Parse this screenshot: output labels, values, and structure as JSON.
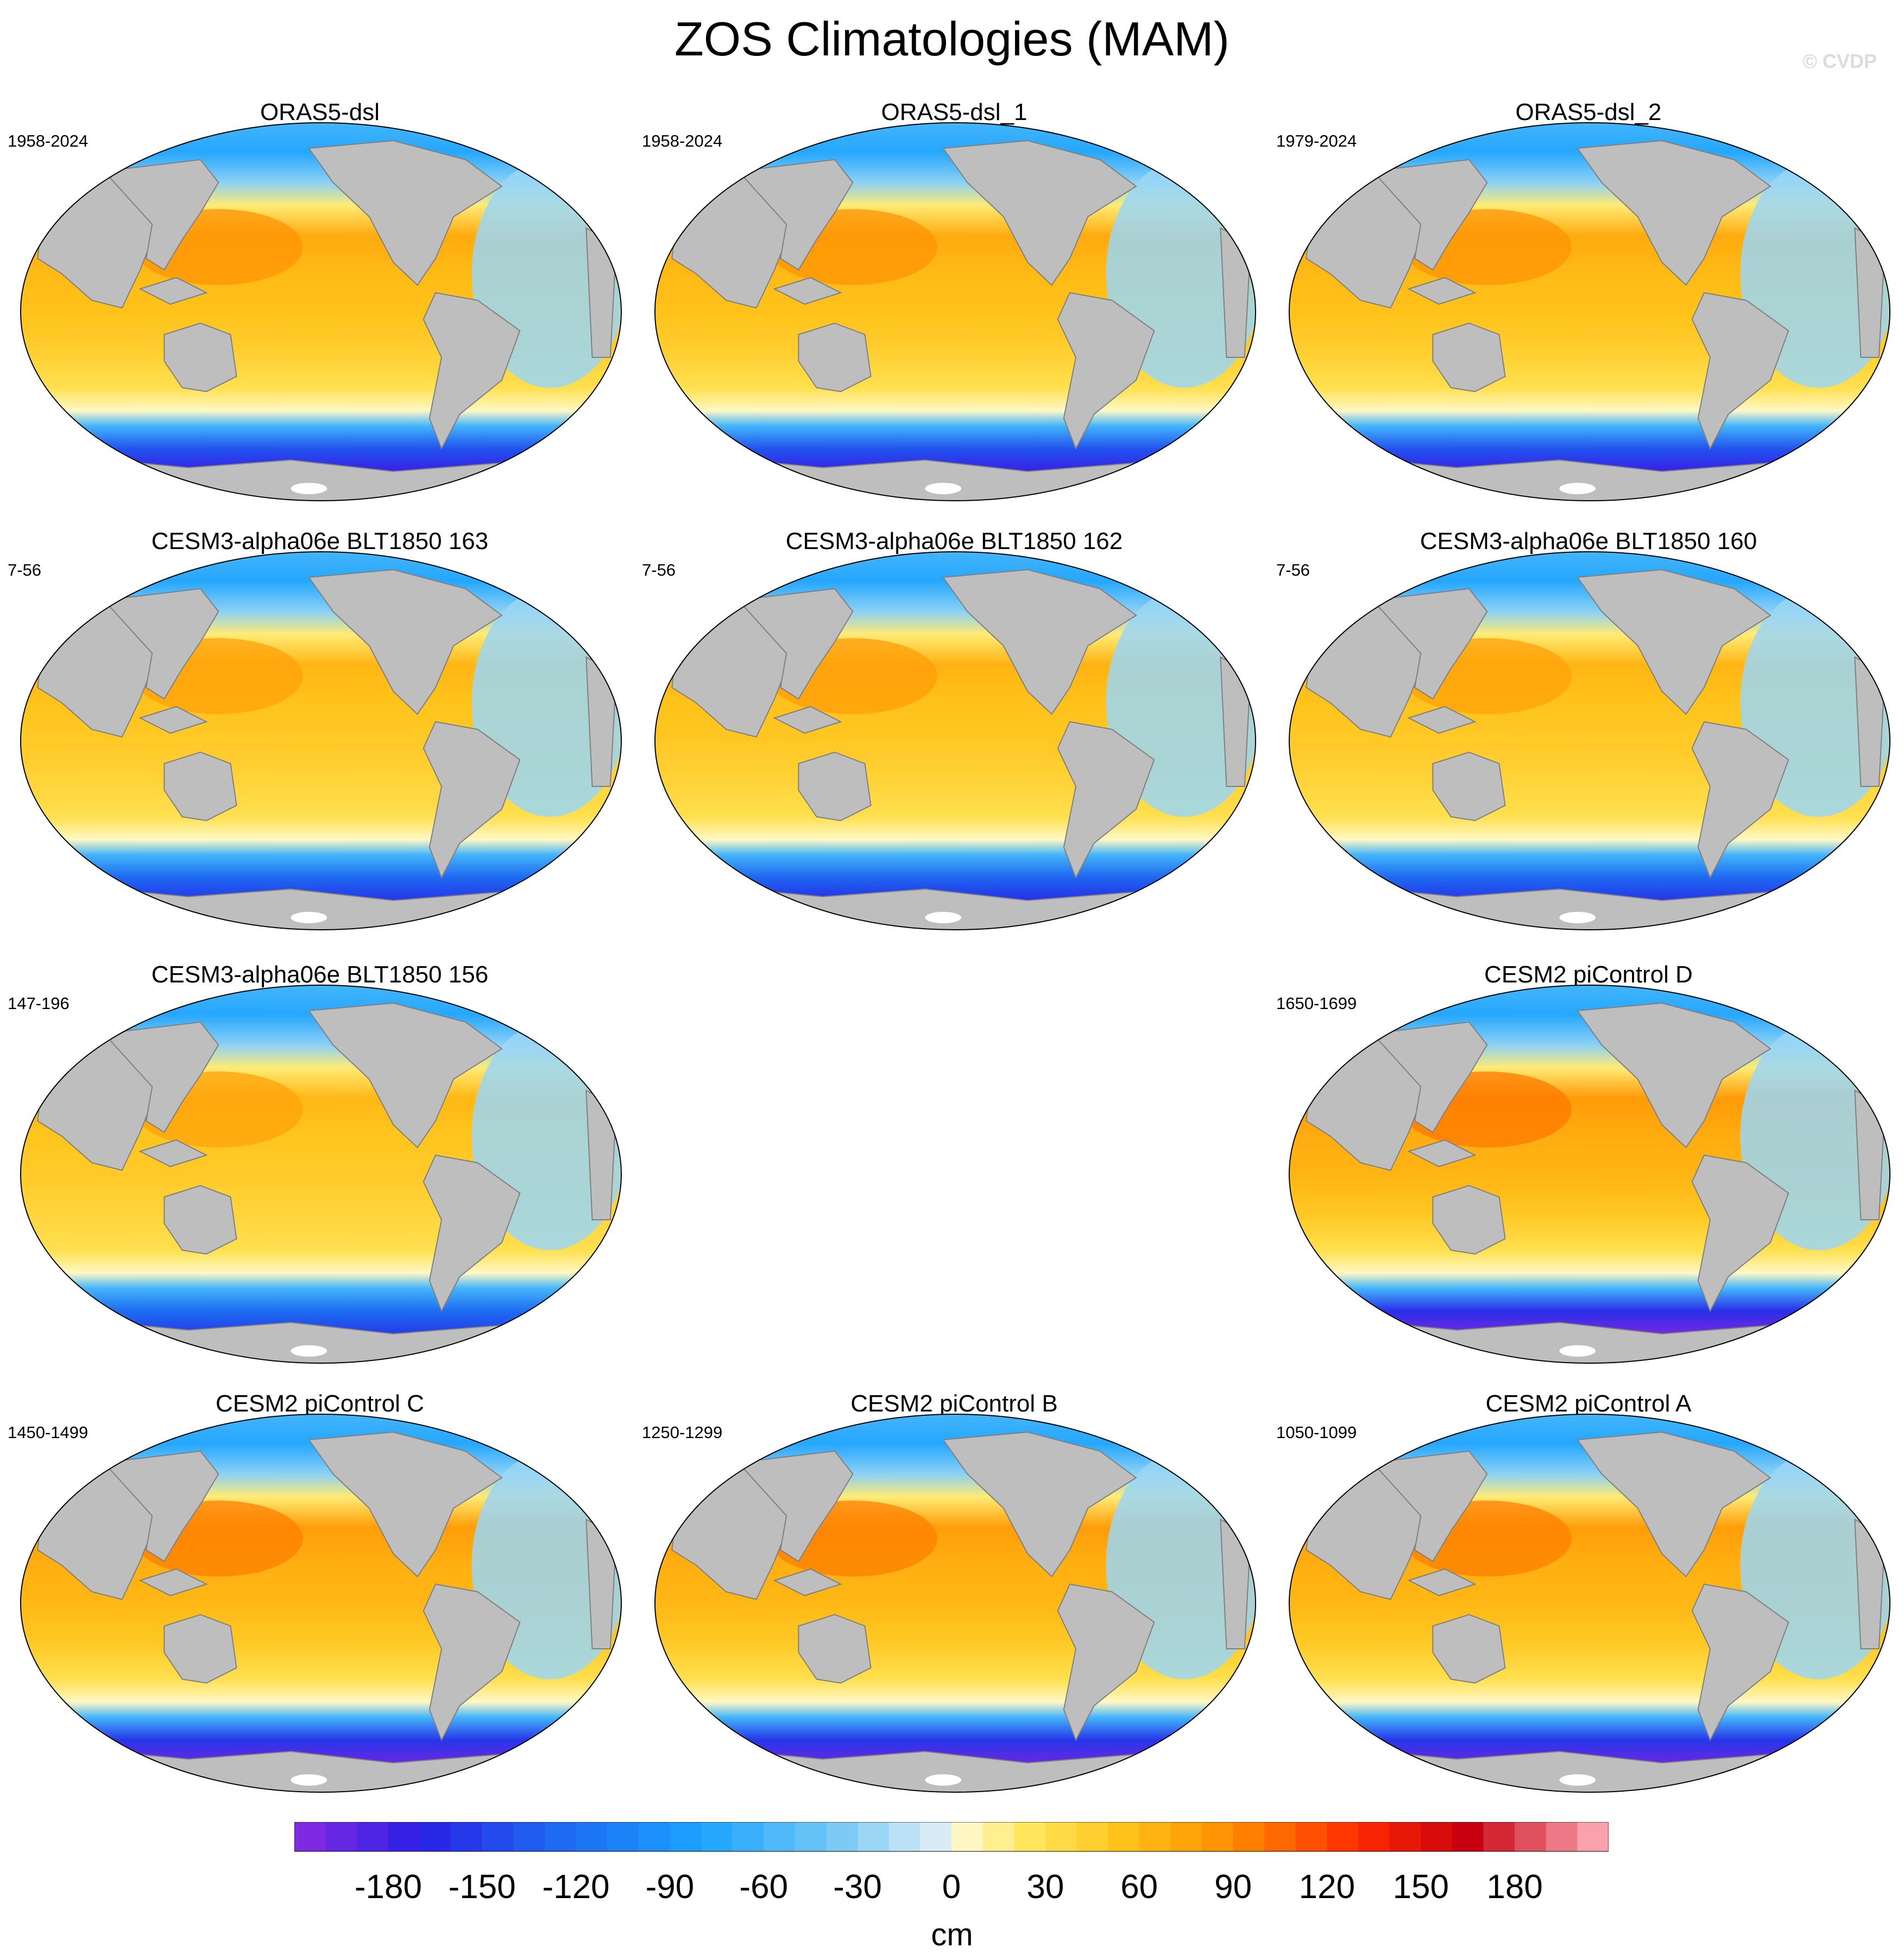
{
  "title": "ZOS Climatologies (MAM)",
  "watermark": "© CVDP",
  "panels": [
    {
      "title": "ORAS5-dsl",
      "years": "1958-2024",
      "col": 0,
      "row": 0,
      "intensity": 1.0
    },
    {
      "title": "ORAS5-dsl_1",
      "years": "1958-2024",
      "col": 1,
      "row": 0,
      "intensity": 1.0
    },
    {
      "title": "ORAS5-dsl_2",
      "years": "1979-2024",
      "col": 2,
      "row": 0,
      "intensity": 1.0
    },
    {
      "title": "CESM3-alpha06e BLT1850 163",
      "years": "7-56",
      "col": 0,
      "row": 1,
      "intensity": 0.9
    },
    {
      "title": "CESM3-alpha06e BLT1850 162",
      "years": "7-56",
      "col": 1,
      "row": 1,
      "intensity": 0.92
    },
    {
      "title": "CESM3-alpha06e BLT1850 160",
      "years": "7-56",
      "col": 2,
      "row": 1,
      "intensity": 0.9
    },
    {
      "title": "CESM3-alpha06e BLT1850 156",
      "years": "147-196",
      "col": 0,
      "row": 2,
      "intensity": 0.88
    },
    {
      "title": "CESM2 piControl D",
      "years": "1650-1699",
      "col": 2,
      "row": 2,
      "intensity": 1.15
    },
    {
      "title": "CESM2 piControl C",
      "years": "1450-1499",
      "col": 0,
      "row": 3,
      "intensity": 1.12
    },
    {
      "title": "CESM2 piControl B",
      "years": "1250-1299",
      "col": 1,
      "row": 3,
      "intensity": 1.12
    },
    {
      "title": "CESM2 piControl A",
      "years": "1050-1099",
      "col": 2,
      "row": 3,
      "intensity": 1.12
    }
  ],
  "colorbar": {
    "unit": "cm",
    "min": -210,
    "max": 210,
    "step": 10,
    "tick_labels": [
      "-180",
      "-150",
      "-120",
      "-90",
      "-60",
      "-30",
      "0",
      "30",
      "60",
      "90",
      "120",
      "150",
      "180"
    ],
    "tick_values": [
      -180,
      -150,
      -120,
      -90,
      -60,
      -30,
      0,
      30,
      60,
      90,
      120,
      150,
      180
    ],
    "color_stops": [
      {
        "v": -210,
        "c": "#8a2be2"
      },
      {
        "v": -170,
        "c": "#2a1fe6"
      },
      {
        "v": -130,
        "c": "#1e64f0"
      },
      {
        "v": -80,
        "c": "#1aa3ff"
      },
      {
        "v": -40,
        "c": "#6ec6f5"
      },
      {
        "v": -5,
        "c": "#d8ecf6"
      },
      {
        "v": 0,
        "c": "#fffde0"
      },
      {
        "v": 25,
        "c": "#ffe65a"
      },
      {
        "v": 55,
        "c": "#ffc21a"
      },
      {
        "v": 90,
        "c": "#ff8c00"
      },
      {
        "v": 130,
        "c": "#ff2a00"
      },
      {
        "v": 165,
        "c": "#c8000f"
      },
      {
        "v": 210,
        "c": "#ffb6c1"
      }
    ]
  },
  "colors": {
    "land": "#bebebe",
    "coastline": "#808080",
    "ice": "#ffffff"
  }
}
